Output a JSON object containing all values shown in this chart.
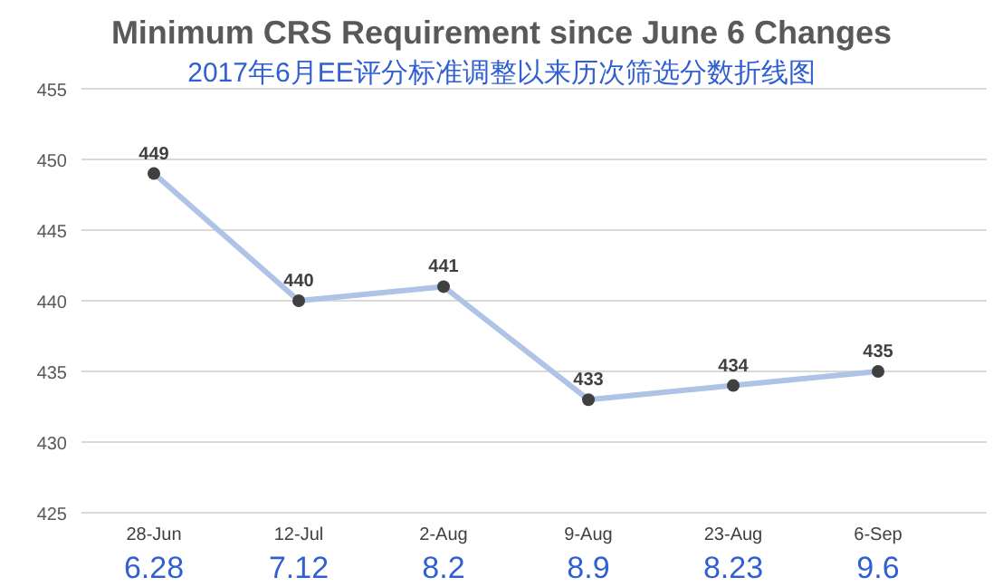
{
  "chart_data": {
    "type": "line",
    "title": "Minimum CRS Requirement since June 6 Changes",
    "subtitle": "2017年6月EE评分标准调整以来历次筛选分数折线图",
    "categories": [
      "28-Jun",
      "12-Jul",
      "2-Aug",
      "9-Aug",
      "23-Aug",
      "6-Sep"
    ],
    "series": [
      {
        "color": "#aec3e6",
        "values": [
          449,
          440,
          441,
          433,
          434,
          435
        ]
      }
    ],
    "ylim": [
      425,
      455
    ],
    "yticks": [
      425,
      430,
      435,
      440,
      445,
      450,
      455
    ],
    "grid": "y",
    "marker": "circle",
    "data_labels": true,
    "annotations": [
      "6.28",
      "7.12",
      "8.2",
      "8.9",
      "8.23",
      "9.6"
    ]
  }
}
